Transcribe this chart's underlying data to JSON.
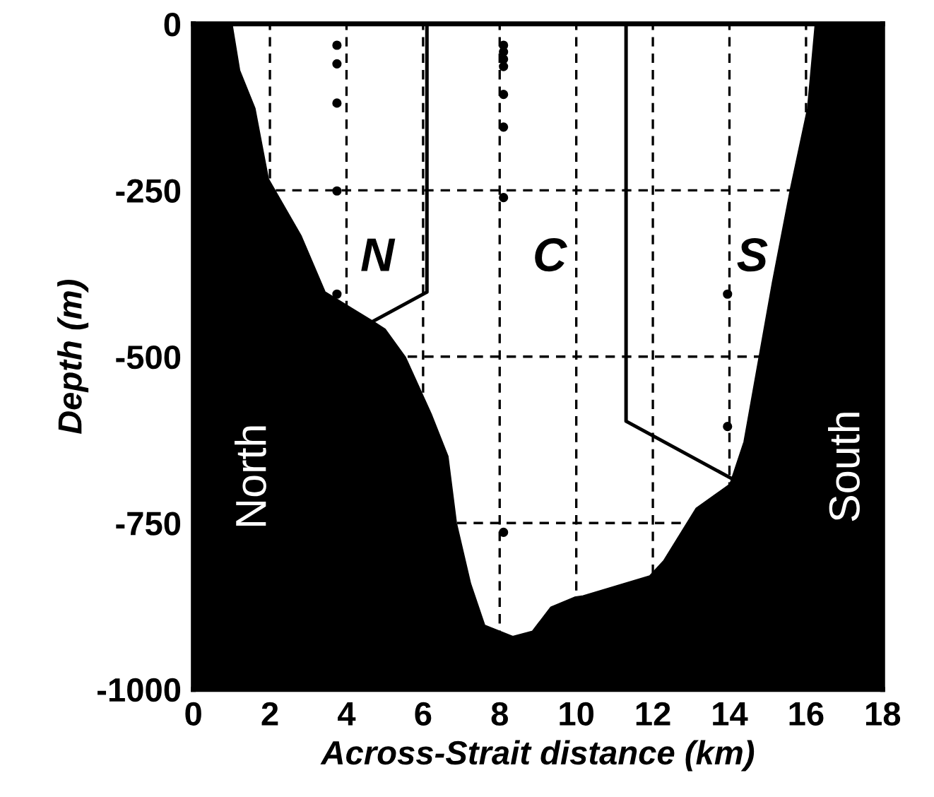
{
  "chart_data": {
    "type": "area",
    "xlabel": "Across-Strait distance (km)",
    "ylabel": "Depth (m)",
    "xlim": [
      0,
      18
    ],
    "ylim": [
      -1000,
      0
    ],
    "xticks": [
      0,
      2,
      4,
      6,
      8,
      10,
      12,
      14,
      16,
      18
    ],
    "yticks": [
      -1000,
      -750,
      -500,
      -250,
      0
    ],
    "grid": true,
    "legend": false,
    "series": [
      {
        "color": "#000000",
        "x": [
          0,
          0,
          1.0,
          1.2,
          1.6,
          1.95,
          2.8,
          3.43,
          4.65,
          5.0,
          5.53,
          6.2,
          6.64,
          6.86,
          7.23,
          7.6,
          8.34,
          8.86,
          9.34,
          9.96,
          10.18,
          11.92,
          12.29,
          13.14,
          14.02,
          14.39,
          15.13,
          15.61,
          16.05,
          16.25,
          18,
          18
        ],
        "values": [
          -1000,
          0,
          0,
          -70,
          -127,
          -233,
          -318,
          -403,
          -446,
          -459,
          -501,
          -586,
          -650,
          -750,
          -841,
          -904,
          -921,
          -913,
          -877,
          -862,
          -860,
          -830,
          -807,
          -728,
          -692,
          -628,
          -389,
          -246,
          -127,
          0,
          0,
          -1000
        ]
      },
      {
        "type": "scatter",
        "color": "#000000",
        "marker": "circle",
        "x": [
          3.75,
          3.75,
          3.75,
          3.75,
          3.75,
          8.1,
          8.1,
          8.1,
          8.1,
          8.1,
          8.1,
          8.1,
          8.1,
          13.95,
          13.95
        ],
        "values": [
          -32,
          -60,
          -119,
          -251,
          -406,
          -32,
          -42,
          -53,
          -64,
          -106,
          -155,
          -261,
          -764,
          -406,
          -605
        ]
      },
      {
        "type": "line",
        "color": "#000000",
        "line_style": "solid",
        "x": [
          6.1,
          6.1,
          4.72
        ],
        "values": [
          0,
          -403,
          -446
        ]
      },
      {
        "type": "line",
        "color": "#000000",
        "line_style": "solid",
        "x": [
          11.3,
          11.3,
          14.02
        ],
        "values": [
          0,
          -597,
          -682
        ]
      }
    ],
    "annotations": [
      "N",
      "C",
      "S",
      "North",
      "South"
    ]
  }
}
